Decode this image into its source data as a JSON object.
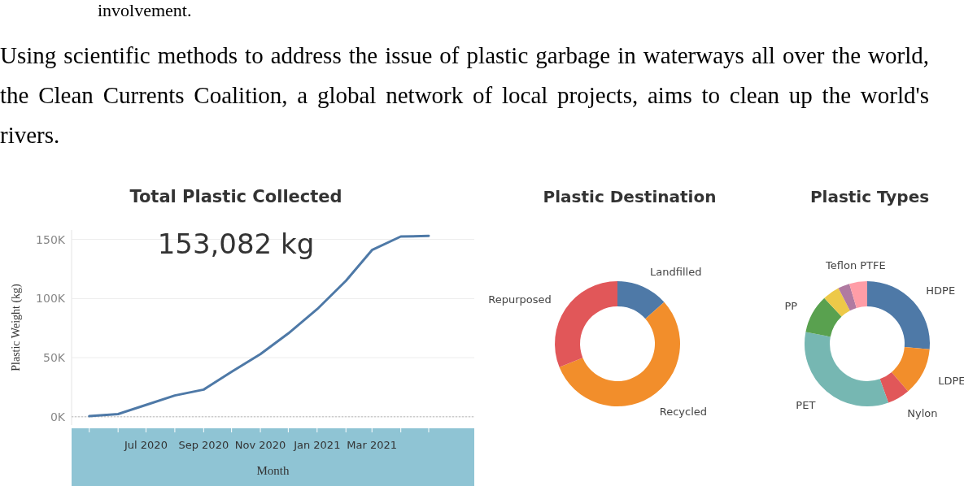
{
  "chart_data": [
    {
      "type": "line",
      "title": "Total Plastic Collected",
      "xlabel": "Month",
      "ylabel": "Plastic Weight (kg)",
      "annotations": [
        "involvement.",
        "Using scientific methods to address the issue of plastic garbage in waterways all over the world, the Clean Currents Coalition, a global network of local projects, aims to clean up the world's rivers.",
        "153,082 kg"
      ],
      "x": [
        "2020-05",
        "2020-06",
        "2020-07",
        "2020-08",
        "2020-09",
        "2020-10",
        "2020-11",
        "2020-12",
        "2021-01",
        "2021-02",
        "2021-03",
        "2021-04",
        "2021-05"
      ],
      "series": [
        {
          "color": "#4e79a7",
          "values": [
            500,
            2300,
            10000,
            18000,
            23000,
            38000,
            53000,
            70500,
            91000,
            115000,
            141000,
            152500,
            153000
          ]
        }
      ],
      "xlim": [
        "2020-04-12",
        "2021-06-19"
      ],
      "xticks": [
        {
          "value": "2020-05",
          "label": null
        },
        {
          "value": "2020-06",
          "label": null
        },
        {
          "value": "2020-07",
          "label": "Jul 2020"
        },
        {
          "value": "2020-08",
          "label": null
        },
        {
          "value": "2020-09",
          "label": "Sep 2020"
        },
        {
          "value": "2020-10",
          "label": null
        },
        {
          "value": "2020-11",
          "label": "Nov 2020"
        },
        {
          "value": "2020-12",
          "label": null
        },
        {
          "value": "2021-01",
          "label": "Jan 2021"
        },
        {
          "value": "2021-02",
          "label": null
        },
        {
          "value": "2021-03",
          "label": "Mar 2021"
        },
        {
          "value": "2021-04",
          "label": null
        },
        {
          "value": "2021-05",
          "label": null
        }
      ],
      "ylim": [
        -7000,
        158000
      ],
      "ref_lines": [
        {
          "axis": "y",
          "value": 0,
          "color": "#bbbbbb",
          "line_style": "dotted"
        }
      ],
      "yticks": [
        {
          "value": 0,
          "label": "0K"
        },
        {
          "value": 50000,
          "label": "50K"
        },
        {
          "value": 100000,
          "label": "100K"
        },
        {
          "value": 150000,
          "label": "150K"
        }
      ],
      "grid": "y",
      "marker": "none",
      "line_style": "solid"
    },
    {
      "type": "donut",
      "title": "Plastic Destination",
      "categories": [
        "Landfilled",
        "Recycled",
        "Repurposed"
      ],
      "values": [
        13.4,
        55.5,
        31.1
      ],
      "colors": [
        "#4e79a7",
        "#f28e2b",
        "#e15759"
      ]
    },
    {
      "type": "donut",
      "title": "Plastic Types",
      "categories": [
        "HDPE",
        "LDPE",
        "Nylon",
        "PET",
        "PP",
        null,
        null,
        "Teflon PTFE"
      ],
      "values": [
        26.4,
        12.3,
        5.8,
        33.5,
        10,
        4.4,
        3,
        4.6
      ],
      "colors": [
        "#4e79a7",
        "#f28e2b",
        "#e15759",
        "#76b7b2",
        "#59a14f",
        "#edc948",
        "#b07aa1",
        "#ff9da7"
      ]
    }
  ]
}
